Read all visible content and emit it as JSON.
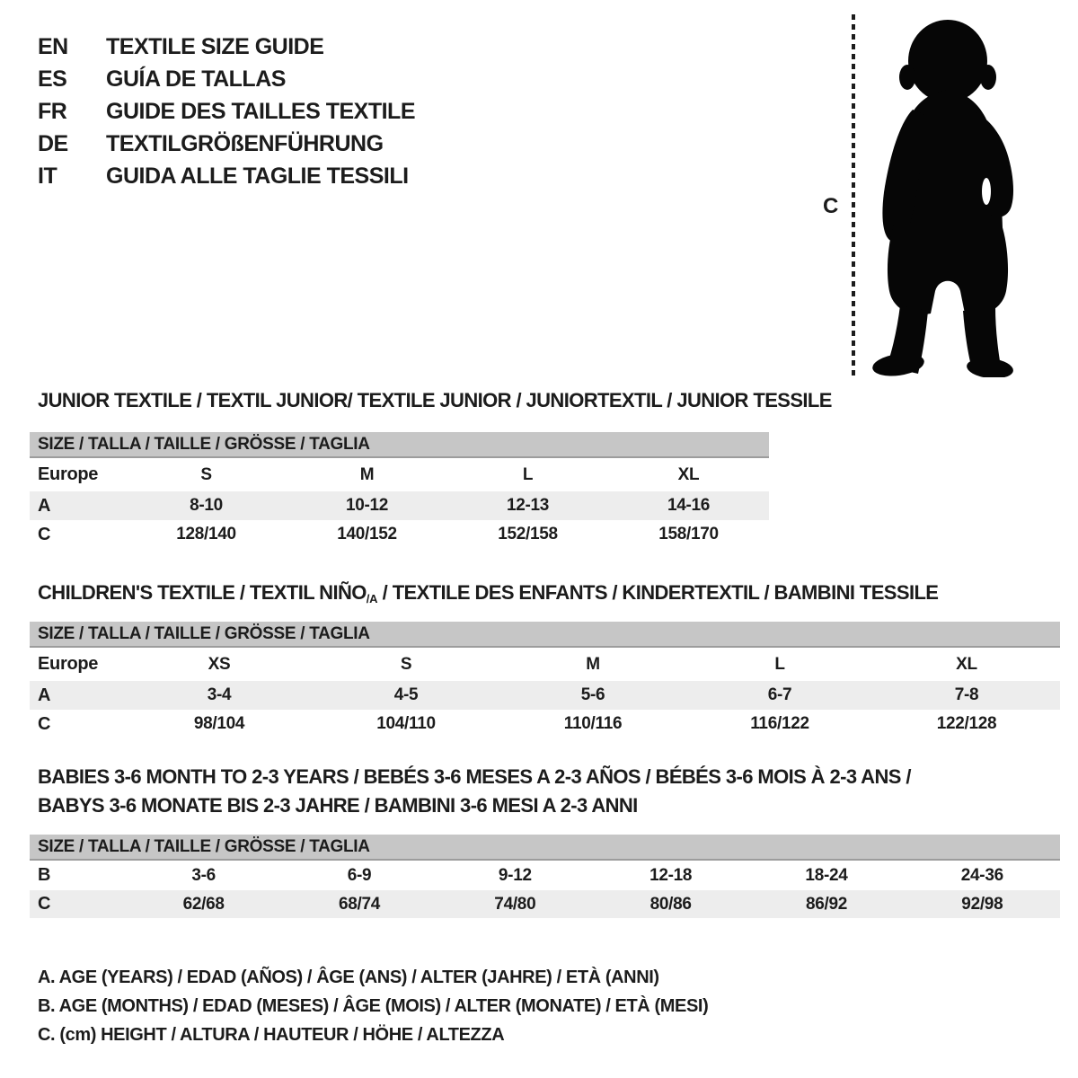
{
  "colors": {
    "header_bar": "#c6c6c6",
    "row_alt": "#ededed",
    "ink": "#1c1c1c",
    "bar_edge": "#9c9c9c"
  },
  "languages": {
    "items": [
      {
        "code": "EN",
        "label": "TEXTILE SIZE GUIDE"
      },
      {
        "code": "ES",
        "label": "GUÍA DE TALLAS"
      },
      {
        "code": "FR",
        "label": "GUIDE DES TAILLES TEXTILE"
      },
      {
        "code": "DE",
        "label": "TEXTILGRÖßENFÜHRUNG"
      },
      {
        "code": "IT",
        "label": "GUIDA ALLE TAGLIE TESSILI"
      }
    ]
  },
  "figure": {
    "height_label": "C",
    "image": "baby-silhouette"
  },
  "sections": {
    "junior": {
      "title": "JUNIOR TEXTILE / TEXTIL JUNIOR/ TEXTILE JUNIOR / JUNIORTEXTIL / JUNIOR TESSILE",
      "table": {
        "header": "SIZE / TALLA / TAILLE / GRÖSSE / TAGLIA",
        "rows": [
          {
            "label": "Europe",
            "values": [
              "S",
              "M",
              "L",
              "XL"
            ]
          },
          {
            "label": "A",
            "values": [
              "8-10",
              "10-12",
              "12-13",
              "14-16"
            ]
          },
          {
            "label": "C",
            "values": [
              "128/140",
              "140/152",
              "152/158",
              "158/170"
            ]
          }
        ]
      }
    },
    "children": {
      "title_part1": "CHILDREN'S TEXTILE / TEXTIL NIÑO",
      "title_sub": "/A",
      "title_part2": " / TEXTILE DES ENFANTS / KINDERTEXTIL / BAMBINI TESSILE",
      "table": {
        "header": "SIZE / TALLA / TAILLE / GRÖSSE / TAGLIA",
        "rows": [
          {
            "label": "Europe",
            "values": [
              "XS",
              "S",
              "M",
              "L",
              "XL"
            ]
          },
          {
            "label": "A",
            "values": [
              "3-4",
              "4-5",
              "5-6",
              "6-7",
              "7-8"
            ]
          },
          {
            "label": "C",
            "values": [
              "98/104",
              "104/110",
              "110/116",
              "116/122",
              "122/128"
            ]
          }
        ]
      }
    },
    "babies": {
      "title_line1": "BABIES 3-6 MONTH TO 2-3 YEARS / BEBÉS 3-6 MESES A 2-3 AÑOS / BÉBÉS 3-6 MOIS À 2-3 ANS /",
      "title_line2": "BABYS 3-6 MONATE BIS 2-3 JAHRE / BAMBINI 3-6 MESI A 2-3 ANNI",
      "table": {
        "header": "SIZE / TALLA / TAILLE / GRÖSSE / TAGLIA",
        "rows": [
          {
            "label": "B",
            "values": [
              "3-6",
              "6-9",
              "9-12",
              "12-18",
              "18-24",
              "24-36"
            ]
          },
          {
            "label": "C",
            "values": [
              "62/68",
              "68/74",
              "74/80",
              "80/86",
              "86/92",
              "92/98"
            ]
          }
        ]
      }
    }
  },
  "footnotes": [
    "A. AGE (YEARS) / EDAD (AÑOS) / ÂGE (ANS) / ALTER (JAHRE) / ETÀ (ANNI)",
    "B. AGE (MONTHS) / EDAD (MESES) / ÂGE (MOIS) / ALTER (MONATE) / ETÀ (MESI)",
    "C. (cm) HEIGHT / ALTURA / HAUTEUR / HÖHE / ALTEZZA"
  ]
}
